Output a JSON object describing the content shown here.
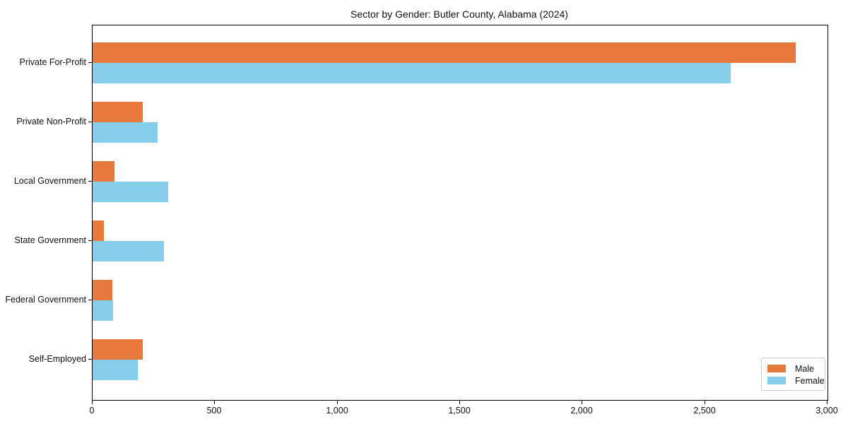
{
  "title": "Sector by Gender: Butler County, Alabama (2024)",
  "chart_data": {
    "type": "bar",
    "orientation": "horizontal",
    "title": "Sector by Gender: Butler County, Alabama (2024)",
    "categories": [
      "Private For-Profit",
      "Private Non-Profit",
      "Local Government",
      "State Government",
      "Federal Government",
      "Self-Employed"
    ],
    "series": [
      {
        "name": "Male",
        "color": "#E8793C",
        "values": [
          2870,
          205,
          90,
          45,
          80,
          205
        ]
      },
      {
        "name": "Female",
        "color": "#87CEEB",
        "values": [
          2605,
          265,
          310,
          290,
          85,
          185
        ]
      }
    ],
    "xlabel": "",
    "ylabel": "",
    "xlim": [
      0,
      3000
    ],
    "xticks": [
      0,
      500,
      1000,
      1500,
      2000,
      2500,
      3000
    ],
    "xtick_labels": [
      "0",
      "500",
      "1,000",
      "1,500",
      "2,000",
      "2,500",
      "3,000"
    ],
    "grid": false,
    "legend_position": "lower right"
  },
  "legend": {
    "items": [
      {
        "label": "Male",
        "color": "#E8793C"
      },
      {
        "label": "Female",
        "color": "#87CEEB"
      }
    ]
  },
  "colors": {
    "male": "#E8793C",
    "female": "#87CEEB",
    "axis": "#000000",
    "legend_border": "#cccccc",
    "background": "#ffffff"
  }
}
